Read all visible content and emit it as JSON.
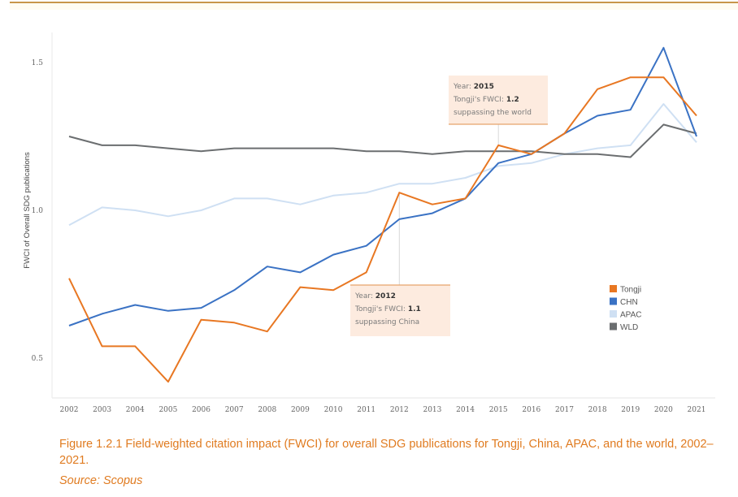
{
  "chart_data": {
    "type": "line",
    "title": "",
    "xlabel": "",
    "ylabel": "FWCI of Overall SDG publications",
    "x": [
      "2002",
      "2003",
      "2004",
      "2005",
      "2006",
      "2007",
      "2008",
      "2009",
      "2010",
      "2011",
      "2012",
      "2013",
      "2014",
      "2015",
      "2016",
      "2017",
      "2018",
      "2019",
      "2020",
      "2021"
    ],
    "yticks": [
      "0.5",
      "1.0",
      "1.5"
    ],
    "ytick_values": [
      0.5,
      1.0,
      1.5
    ],
    "ylim": [
      0.37,
      1.62
    ],
    "grid": false,
    "legend_position": "right-middle",
    "series": [
      {
        "name": "Tongji",
        "color": "#e87722",
        "values": [
          0.77,
          0.54,
          0.54,
          0.42,
          0.63,
          0.62,
          0.59,
          0.74,
          0.73,
          0.79,
          1.06,
          1.02,
          1.04,
          1.22,
          1.19,
          1.26,
          1.41,
          1.45,
          1.45,
          1.32
        ]
      },
      {
        "name": "CHN",
        "color": "#3a72c4",
        "values": [
          0.61,
          0.65,
          0.68,
          0.66,
          0.67,
          0.73,
          0.81,
          0.79,
          0.85,
          0.88,
          0.97,
          0.99,
          1.04,
          1.16,
          1.19,
          1.26,
          1.32,
          1.34,
          1.55,
          1.25
        ]
      },
      {
        "name": "APAC",
        "color": "#cfe0f3",
        "values": [
          0.95,
          1.01,
          1.0,
          0.98,
          1.0,
          1.04,
          1.04,
          1.02,
          1.05,
          1.06,
          1.09,
          1.09,
          1.11,
          1.15,
          1.16,
          1.19,
          1.21,
          1.22,
          1.36,
          1.23
        ]
      },
      {
        "name": "WLD",
        "color": "#6b6e70",
        "values": [
          1.25,
          1.22,
          1.22,
          1.21,
          1.2,
          1.21,
          1.21,
          1.21,
          1.21,
          1.2,
          1.2,
          1.19,
          1.2,
          1.2,
          1.2,
          1.19,
          1.19,
          1.18,
          1.29,
          1.26
        ]
      }
    ],
    "annotations": [
      {
        "year": "2015",
        "lines": [
          {
            "label": "Year: ",
            "value": "2015"
          },
          {
            "label": "Tongji's FWCI: ",
            "value": "1.2"
          },
          {
            "label": " suppassing the world",
            "value": ""
          }
        ]
      },
      {
        "year": "2012",
        "lines": [
          {
            "label": "Year: ",
            "value": "2012"
          },
          {
            "label": "Tongji's FWCI: ",
            "value": "1.1"
          },
          {
            "label": "suppassing China",
            "value": ""
          }
        ]
      }
    ]
  },
  "caption": {
    "figure": "Figure 1.2.1 Field-weighted citation impact (FWCI) for overall SDG publications for Tongji, China, APAC, and the world, 2002–2021.",
    "source": "Source: Scopus"
  }
}
